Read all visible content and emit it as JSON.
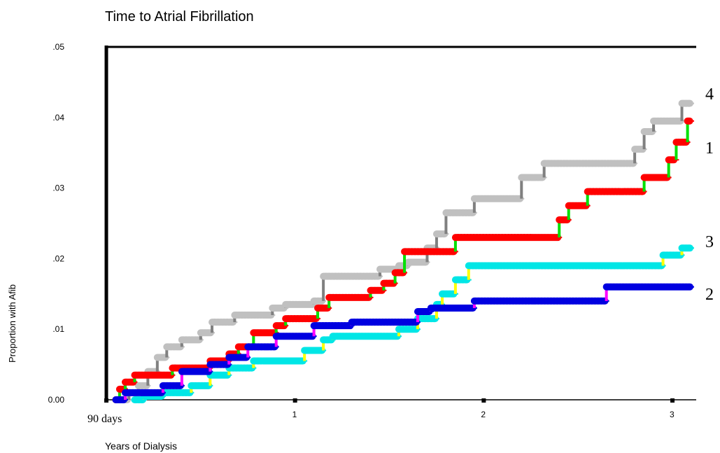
{
  "chart_data": {
    "type": "line",
    "step": true,
    "title": "Time to Atrial Fibrillation",
    "xlabel": "Years of Dialysis",
    "ylabel": "Proportion with Afib",
    "xlim": [
      0,
      3.1
    ],
    "ylim": [
      0,
      0.05
    ],
    "x_ticks": [
      {
        "value": 0,
        "label": "90 days"
      },
      {
        "value": 1,
        "label": "1"
      },
      {
        "value": 2,
        "label": "2"
      },
      {
        "value": 3,
        "label": "3"
      }
    ],
    "y_ticks": [
      {
        "value": 0,
        "label": "0.00"
      },
      {
        "value": 0.01,
        "label": ".01"
      },
      {
        "value": 0.02,
        "label": ".02"
      },
      {
        "value": 0.03,
        "label": ".03"
      },
      {
        "value": 0.04,
        "label": ".04"
      },
      {
        "value": 0.05,
        "label": ".05"
      }
    ],
    "grid": false,
    "legend": "none",
    "series": [
      {
        "name": "4",
        "line_color": "#808080",
        "marker_color": "#c0c0c0",
        "points": [
          [
            0.05,
            0
          ],
          [
            0.12,
            0.001
          ],
          [
            0.17,
            0.002
          ],
          [
            0.22,
            0.004
          ],
          [
            0.27,
            0.006
          ],
          [
            0.32,
            0.0075
          ],
          [
            0.4,
            0.0085
          ],
          [
            0.5,
            0.0095
          ],
          [
            0.56,
            0.011
          ],
          [
            0.68,
            0.012
          ],
          [
            0.88,
            0.013
          ],
          [
            0.95,
            0.0135
          ],
          [
            1.1,
            0.014
          ],
          [
            1.15,
            0.0175
          ],
          [
            1.45,
            0.0185
          ],
          [
            1.55,
            0.019
          ],
          [
            1.6,
            0.0195
          ],
          [
            1.7,
            0.0215
          ],
          [
            1.75,
            0.0235
          ],
          [
            1.8,
            0.0265
          ],
          [
            1.95,
            0.0285
          ],
          [
            2.2,
            0.0315
          ],
          [
            2.32,
            0.0335
          ],
          [
            2.8,
            0.0355
          ],
          [
            2.85,
            0.038
          ],
          [
            2.9,
            0.0395
          ],
          [
            3.05,
            0.042
          ]
        ]
      },
      {
        "name": "1",
        "line_color": "#00e000",
        "marker_color": "#ff0000",
        "points": [
          [
            0.05,
            0
          ],
          [
            0.07,
            0.0015
          ],
          [
            0.1,
            0.0025
          ],
          [
            0.15,
            0.0035
          ],
          [
            0.35,
            0.0045
          ],
          [
            0.55,
            0.0055
          ],
          [
            0.65,
            0.0065
          ],
          [
            0.7,
            0.0075
          ],
          [
            0.78,
            0.0095
          ],
          [
            0.9,
            0.0105
          ],
          [
            0.95,
            0.0115
          ],
          [
            1.12,
            0.013
          ],
          [
            1.18,
            0.0145
          ],
          [
            1.4,
            0.0155
          ],
          [
            1.47,
            0.0165
          ],
          [
            1.53,
            0.018
          ],
          [
            1.58,
            0.021
          ],
          [
            1.85,
            0.023
          ],
          [
            2.4,
            0.0255
          ],
          [
            2.45,
            0.0275
          ],
          [
            2.55,
            0.0295
          ],
          [
            2.85,
            0.0315
          ],
          [
            2.98,
            0.034
          ],
          [
            3.02,
            0.0365
          ],
          [
            3.08,
            0.0395
          ]
        ]
      },
      {
        "name": "3",
        "line_color": "#ffff00",
        "marker_color": "#00e6e6",
        "points": [
          [
            0.15,
            0
          ],
          [
            0.2,
            0.0005
          ],
          [
            0.3,
            0.001
          ],
          [
            0.45,
            0.002
          ],
          [
            0.55,
            0.0035
          ],
          [
            0.65,
            0.0045
          ],
          [
            0.78,
            0.0055
          ],
          [
            1.05,
            0.007
          ],
          [
            1.15,
            0.0085
          ],
          [
            1.2,
            0.009
          ],
          [
            1.55,
            0.01
          ],
          [
            1.65,
            0.0115
          ],
          [
            1.75,
            0.0135
          ],
          [
            1.78,
            0.015
          ],
          [
            1.85,
            0.017
          ],
          [
            1.92,
            0.019
          ],
          [
            2.95,
            0.0205
          ],
          [
            3.05,
            0.0215
          ]
        ]
      },
      {
        "name": "2",
        "line_color": "#ff00ff",
        "marker_color": "#0000e0",
        "points": [
          [
            0.05,
            0
          ],
          [
            0.1,
            0.001
          ],
          [
            0.3,
            0.002
          ],
          [
            0.4,
            0.004
          ],
          [
            0.55,
            0.005
          ],
          [
            0.65,
            0.006
          ],
          [
            0.75,
            0.0075
          ],
          [
            0.9,
            0.009
          ],
          [
            1.1,
            0.0105
          ],
          [
            1.3,
            0.011
          ],
          [
            1.65,
            0.0125
          ],
          [
            1.72,
            0.013
          ],
          [
            1.95,
            0.014
          ],
          [
            2.65,
            0.016
          ]
        ]
      }
    ],
    "end_labels": [
      "4",
      "1",
      "3",
      "2"
    ]
  }
}
